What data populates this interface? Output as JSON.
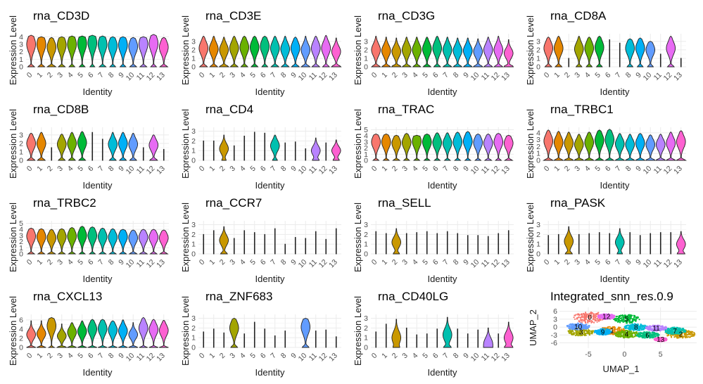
{
  "identity_levels": [
    "0",
    "1",
    "2",
    "3",
    "4",
    "5",
    "6",
    "7",
    "8",
    "9",
    "10",
    "11",
    "12",
    "13"
  ],
  "cluster_colors": [
    "#F8766D",
    "#E58700",
    "#C99800",
    "#A3A500",
    "#6BB100",
    "#00BA38",
    "#00BF7D",
    "#00C0AF",
    "#00BCD8",
    "#00B0F6",
    "#619CFF",
    "#B983FF",
    "#E76BF3",
    "#FD61D1"
  ],
  "chart_data": [
    {
      "type": "violin",
      "title": "rna_CD3D",
      "xlabel": "Identity",
      "ylabel": "Expression Level",
      "yticks": [
        0,
        1,
        2,
        3,
        4
      ],
      "ylim": [
        0,
        4.4
      ],
      "max": [
        4.2,
        4.0,
        3.9,
        4.0,
        4.1,
        4.1,
        4.2,
        4.1,
        4.0,
        4.0,
        3.9,
        4.0,
        4.3,
        3.9
      ],
      "mode": [
        3.0,
        3.0,
        2.6,
        2.9,
        3.0,
        3.1,
        3.2,
        3.0,
        2.8,
        2.9,
        2.7,
        3.0,
        3.1,
        2.6
      ],
      "zero": [
        0.35,
        0.35,
        0.45,
        0.35,
        0.3,
        0.3,
        0.25,
        0.35,
        0.3,
        0.3,
        0.35,
        0.35,
        0.3,
        0.4
      ]
    },
    {
      "type": "violin",
      "title": "rna_CD3E",
      "xlabel": "Identity",
      "ylabel": "Expression Level",
      "yticks": [
        0,
        1,
        2,
        3
      ],
      "ylim": [
        0,
        3.9
      ],
      "max": [
        3.6,
        3.6,
        3.5,
        3.6,
        3.6,
        3.6,
        3.6,
        3.6,
        3.6,
        3.5,
        3.6,
        3.6,
        3.7,
        3.4
      ],
      "mode": [
        2.2,
        2.1,
        2.0,
        2.2,
        2.3,
        2.3,
        2.4,
        2.2,
        2.1,
        2.2,
        2.0,
        2.2,
        2.2,
        1.8
      ],
      "zero": [
        0.4,
        0.4,
        0.5,
        0.4,
        0.35,
        0.35,
        0.3,
        0.4,
        0.4,
        0.4,
        0.45,
        0.4,
        0.35,
        0.5
      ]
    },
    {
      "type": "violin",
      "title": "rna_CD3G",
      "xlabel": "Identity",
      "ylabel": "Expression Level",
      "yticks": [
        0,
        1,
        2,
        3
      ],
      "ylim": [
        0,
        3.9
      ],
      "max": [
        3.6,
        3.5,
        3.4,
        3.5,
        3.5,
        3.5,
        3.6,
        3.5,
        3.4,
        3.4,
        3.3,
        3.5,
        3.6,
        3.2
      ],
      "mode": [
        2.0,
        1.9,
        1.8,
        2.0,
        2.0,
        2.1,
        2.2,
        2.0,
        1.9,
        1.9,
        1.8,
        2.0,
        2.0,
        1.6
      ],
      "zero": [
        0.45,
        0.45,
        0.55,
        0.45,
        0.4,
        0.4,
        0.35,
        0.45,
        0.45,
        0.45,
        0.5,
        0.45,
        0.45,
        0.55
      ]
    },
    {
      "type": "violin",
      "title": "rna_CD8A",
      "xlabel": "Identity",
      "ylabel": "Expression Level",
      "yticks": [
        0,
        1,
        2,
        3
      ],
      "ylim": [
        0,
        3.9
      ],
      "max": [
        3.5,
        3.6,
        1.0,
        3.6,
        3.5,
        3.6,
        3.2,
        2.8,
        3.3,
        3.4,
        3.0,
        1.5,
        3.6,
        1.0
      ],
      "mode": [
        2.2,
        2.2,
        0,
        2.1,
        2.2,
        2.3,
        0,
        0,
        2.2,
        2.2,
        2.0,
        0,
        2.2,
        0
      ],
      "zero": [
        0.35,
        0.35,
        0.02,
        0.3,
        0.3,
        0.3,
        0.02,
        0.02,
        0.3,
        0.3,
        0.3,
        0.02,
        0.35,
        0.02
      ]
    },
    {
      "type": "violin",
      "title": "rna_CD8B",
      "xlabel": "Identity",
      "ylabel": "Expression Level",
      "yticks": [
        0,
        1,
        2,
        3
      ],
      "ylim": [
        0,
        3.9
      ],
      "max": [
        3.2,
        3.3,
        1.5,
        3.1,
        3.3,
        3.4,
        3.3,
        2.5,
        3.3,
        3.3,
        3.2,
        1.5,
        3.0,
        1.3
      ],
      "mode": [
        2.0,
        2.0,
        0,
        1.9,
        2.0,
        2.1,
        0,
        0,
        1.9,
        2.0,
        1.9,
        0,
        1.8,
        0
      ],
      "zero": [
        0.4,
        0.4,
        0.02,
        0.35,
        0.35,
        0.35,
        0.02,
        0.02,
        0.35,
        0.35,
        0.35,
        0.02,
        0.4,
        0.02
      ]
    },
    {
      "type": "violin",
      "title": "rna_CD4",
      "xlabel": "Identity",
      "ylabel": "Expression Level",
      "yticks": [
        0,
        1,
        2,
        3
      ],
      "ylim": [
        0,
        3.4
      ],
      "max": [
        2.0,
        2.0,
        2.6,
        1.5,
        2.5,
        2.9,
        2.8,
        2.6,
        1.8,
        1.9,
        1.2,
        2.3,
        1.8,
        2.1
      ],
      "mode": [
        0,
        0,
        1.2,
        0,
        0,
        0,
        0,
        1.5,
        0,
        0,
        0,
        1.0,
        0,
        1.0
      ],
      "zero": [
        0.02,
        0.02,
        0.2,
        0.02,
        0.02,
        0.02,
        0.02,
        0.25,
        0.02,
        0.02,
        0.02,
        0.3,
        0.02,
        0.3
      ]
    },
    {
      "type": "violin",
      "title": "rna_TRAC",
      "xlabel": "Identity",
      "ylabel": "Expression Level",
      "yticks": [
        0,
        1,
        2,
        3,
        4,
        5
      ],
      "ylim": [
        0,
        5.4
      ],
      "max": [
        4.3,
        4.3,
        4.1,
        4.4,
        4.1,
        4.3,
        4.5,
        4.5,
        4.6,
        4.7,
        4.3,
        4.3,
        4.4,
        4.1
      ],
      "mode": [
        3.0,
        3.0,
        2.8,
        2.9,
        3.1,
        3.0,
        2.9,
        2.8,
        3.0,
        3.1,
        2.9,
        2.8,
        3.0,
        2.8
      ],
      "zero": [
        0.3,
        0.3,
        0.35,
        0.3,
        0.3,
        0.3,
        0.3,
        0.3,
        0.3,
        0.3,
        0.3,
        0.35,
        0.3,
        0.4
      ]
    },
    {
      "type": "violin",
      "title": "rna_TRBC1",
      "xlabel": "Identity",
      "ylabel": "Expression Level",
      "yticks": [
        0,
        1,
        2,
        3,
        4
      ],
      "ylim": [
        0,
        4.8
      ],
      "max": [
        4.4,
        4.2,
        4.1,
        3.8,
        4.1,
        4.4,
        4.5,
        3.9,
        3.8,
        3.9,
        3.7,
        3.8,
        4.1,
        4.3
      ],
      "mode": [
        2.8,
        2.6,
        2.5,
        2.3,
        2.6,
        2.9,
        3.0,
        2.4,
        2.3,
        2.5,
        2.3,
        2.3,
        2.5,
        2.7
      ],
      "zero": [
        0.5,
        0.5,
        0.55,
        0.55,
        0.5,
        0.45,
        0.45,
        0.5,
        0.5,
        0.5,
        0.55,
        0.55,
        0.5,
        0.5
      ]
    },
    {
      "type": "violin",
      "title": "rna_TRBC2",
      "xlabel": "Identity",
      "ylabel": "Expression Level",
      "yticks": [
        0,
        1,
        2,
        3,
        4,
        5
      ],
      "ylim": [
        0,
        5.4
      ],
      "max": [
        4.2,
        4.1,
        4.0,
        4.1,
        4.3,
        4.5,
        4.4,
        4.2,
        4.1,
        4.0,
        3.9,
        4.0,
        4.0,
        3.9
      ],
      "mode": [
        2.9,
        2.8,
        2.6,
        2.8,
        2.9,
        3.0,
        3.0,
        2.8,
        2.7,
        2.8,
        2.6,
        2.7,
        2.7,
        2.6
      ],
      "zero": [
        0.35,
        0.35,
        0.4,
        0.35,
        0.35,
        0.3,
        0.3,
        0.35,
        0.35,
        0.35,
        0.4,
        0.4,
        0.35,
        0.4
      ]
    },
    {
      "type": "violin",
      "title": "rna_CCR7",
      "xlabel": "Identity",
      "ylabel": "Expression Level",
      "yticks": [
        0,
        1,
        2,
        3
      ],
      "ylim": [
        0,
        3.4
      ],
      "max": [
        2.0,
        2.4,
        2.8,
        1.6,
        2.4,
        2.2,
        2.0,
        2.6,
        1.0,
        1.7,
        1.6,
        2.3,
        1.5,
        2.6
      ],
      "mode": [
        0,
        0,
        1.4,
        0,
        0,
        0,
        0,
        0,
        0,
        0,
        0,
        0,
        0,
        0
      ],
      "zero": [
        0.02,
        0.02,
        0.35,
        0.02,
        0.02,
        0.02,
        0.02,
        0.02,
        0.02,
        0.02,
        0.02,
        0.02,
        0.02,
        0.02
      ]
    },
    {
      "type": "violin",
      "title": "rna_SELL",
      "xlabel": "Identity",
      "ylabel": "Expression Level",
      "yticks": [
        0,
        1,
        2,
        3
      ],
      "ylim": [
        0,
        3.4
      ],
      "max": [
        2.3,
        2.1,
        2.6,
        2.1,
        2.2,
        2.3,
        2.1,
        2.3,
        2.1,
        1.9,
        1.9,
        1.8,
        2.1,
        2.4
      ],
      "mode": [
        0,
        0,
        1.2,
        0,
        0,
        0,
        0,
        0,
        0,
        0,
        0,
        0,
        0,
        0
      ],
      "zero": [
        0.02,
        0.02,
        0.3,
        0.02,
        0.02,
        0.02,
        0.02,
        0.02,
        0.02,
        0.02,
        0.02,
        0.02,
        0.02,
        0.02
      ]
    },
    {
      "type": "violin",
      "title": "rna_PASK",
      "xlabel": "Identity",
      "ylabel": "Expression Level",
      "yticks": [
        0,
        1,
        2,
        3
      ],
      "ylim": [
        0,
        3.4
      ],
      "max": [
        1.9,
        2.0,
        2.8,
        2.0,
        2.1,
        2.2,
        2.1,
        2.6,
        2.2,
        1.9,
        2.1,
        2.2,
        2.2,
        2.3
      ],
      "mode": [
        0,
        0,
        1.3,
        0,
        0,
        0,
        0,
        1.2,
        0,
        0,
        0,
        0,
        0,
        1.0
      ],
      "zero": [
        0.02,
        0.02,
        0.35,
        0.02,
        0.02,
        0.02,
        0.02,
        0.25,
        0.02,
        0.02,
        0.02,
        0.02,
        0.02,
        0.35
      ]
    },
    {
      "type": "violin",
      "title": "rna_CXCL13",
      "xlabel": "Identity",
      "ylabel": "Expression Level",
      "yticks": [
        0,
        2,
        4,
        6
      ],
      "ylim": [
        0,
        7.2
      ],
      "max": [
        5.8,
        5.8,
        6.5,
        5.1,
        5.4,
        5.8,
        6.1,
        6.1,
        5.8,
        6.0,
        5.4,
        6.5,
        6.1,
        5.9
      ],
      "mode": [
        2.8,
        3.0,
        4.7,
        2.5,
        3.3,
        3.5,
        4.0,
        4.1,
        3.8,
        3.6,
        2.8,
        4.2,
        3.9,
        3.7
      ],
      "zero": [
        0.6,
        0.6,
        0.3,
        0.7,
        0.6,
        0.55,
        0.5,
        0.5,
        0.5,
        0.55,
        0.65,
        0.45,
        0.5,
        0.5
      ]
    },
    {
      "type": "violin",
      "title": "rna_ZNF683",
      "xlabel": "Identity",
      "ylabel": "Expression Level",
      "yticks": [
        0,
        1,
        2,
        3
      ],
      "ylim": [
        0,
        3.4
      ],
      "max": [
        1.6,
        1.9,
        1.5,
        3.0,
        1.4,
        2.6,
        1.9,
        1.2,
        1.7,
        0,
        3.0,
        1.7,
        1.8,
        1.1
      ],
      "mode": [
        0,
        0,
        0,
        2.0,
        0,
        0,
        0,
        0,
        0,
        0,
        2.1,
        0,
        0,
        0
      ],
      "zero": [
        0.02,
        0.02,
        0.02,
        0.35,
        0.02,
        0.02,
        0.02,
        0.02,
        0.02,
        0,
        0.35,
        0.02,
        0.02,
        0.02
      ]
    },
    {
      "type": "violin",
      "title": "rna_CD40LG",
      "xlabel": "Identity",
      "ylabel": "Expression Level",
      "yticks": [
        0,
        1,
        2,
        3
      ],
      "ylim": [
        0,
        3.4
      ],
      "max": [
        1.6,
        2.4,
        2.9,
        2.0,
        1.3,
        1.4,
        1.9,
        3.1,
        1.9,
        1.4,
        1.8,
        2.0,
        1.4,
        2.6
      ],
      "mode": [
        0,
        0,
        1.0,
        0,
        0,
        0,
        0,
        1.3,
        0,
        0,
        0,
        0.4,
        0,
        1.0
      ],
      "zero": [
        0.02,
        0.02,
        0.2,
        0.02,
        0.02,
        0.02,
        0.02,
        0.35,
        0.02,
        0.02,
        0.02,
        0.25,
        0.02,
        0.35
      ]
    },
    {
      "type": "scatter",
      "title": "Integrated_snn_res.0.9",
      "xlabel": "UMAP_1",
      "ylabel": "UMAP_2",
      "xticks": [
        -5,
        0,
        5
      ],
      "yticks": [
        -6,
        -3,
        0,
        3,
        6
      ],
      "xlim": [
        -9,
        10
      ],
      "ylim": [
        -8,
        7.5
      ],
      "clusters": [
        {
          "label": "0",
          "cx": -4.8,
          "cy": 3.7,
          "rx": 2.3,
          "ry": 2.2
        },
        {
          "label": "1",
          "cx": -1.7,
          "cy": -1.3,
          "rx": 1.8,
          "ry": 1.5
        },
        {
          "label": "2",
          "cx": 7.8,
          "cy": -2.7,
          "rx": 2.0,
          "ry": 1.6
        },
        {
          "label": "3",
          "cx": -6.0,
          "cy": -1.8,
          "rx": 1.8,
          "ry": 1.6
        },
        {
          "label": "4",
          "cx": 0.3,
          "cy": -2.7,
          "rx": 1.7,
          "ry": 1.4
        },
        {
          "label": "5",
          "cx": 0.3,
          "cy": 3.1,
          "rx": 1.8,
          "ry": 1.6
        },
        {
          "label": "6",
          "cx": 3.2,
          "cy": -3.0,
          "rx": 1.6,
          "ry": 1.2
        },
        {
          "label": "7",
          "cx": 7.0,
          "cy": -1.4,
          "rx": 1.5,
          "ry": 1.3
        },
        {
          "label": "8",
          "cx": 1.6,
          "cy": 0.0,
          "rx": 1.6,
          "ry": 1.3
        },
        {
          "label": "9",
          "cx": -3.0,
          "cy": -1.8,
          "rx": 1.2,
          "ry": 1.2
        },
        {
          "label": "10",
          "cx": -6.4,
          "cy": 0.2,
          "rx": 1.6,
          "ry": 1.3
        },
        {
          "label": "11",
          "cx": 4.4,
          "cy": -0.4,
          "rx": 1.5,
          "ry": 1.1
        },
        {
          "label": "12",
          "cx": -2.5,
          "cy": 4.0,
          "rx": 1.2,
          "ry": 1.1
        },
        {
          "label": "13",
          "cx": 5.0,
          "cy": -4.7,
          "rx": 0.9,
          "ry": 0.8
        }
      ]
    }
  ]
}
